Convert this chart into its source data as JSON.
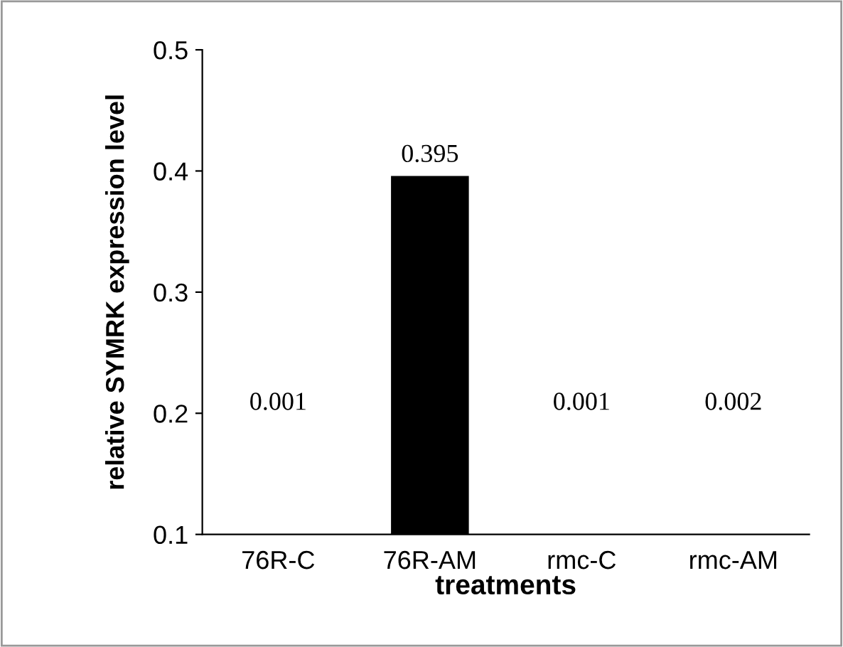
{
  "chart_data": {
    "type": "bar",
    "categories": [
      "76R-C",
      "76R-AM",
      "rmc-C",
      "rmc-AM"
    ],
    "values": [
      null,
      0.395,
      null,
      null
    ],
    "color": "#000000",
    "ylim": [
      0.1,
      0.5
    ],
    "yticks": [
      0.1,
      0.2,
      0.3,
      0.4,
      0.5
    ],
    "xlabel": "treatments",
    "ylabel": "relative SYMRK expression level",
    "data_labels": true,
    "grid": false,
    "legend": false,
    "annotations": [
      "0.001",
      "0.001",
      "0.002"
    ]
  }
}
